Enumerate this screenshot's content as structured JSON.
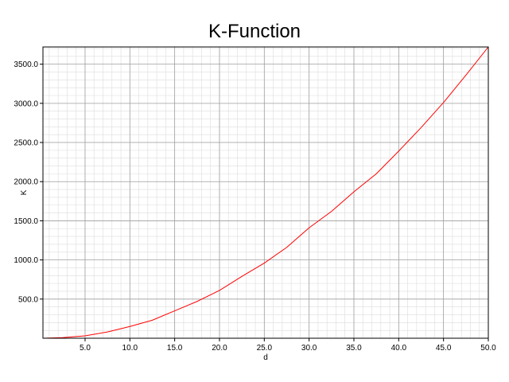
{
  "chart_data": {
    "type": "line",
    "title": "K-Function",
    "xlabel": "d",
    "ylabel": "K",
    "xlim": [
      0.3,
      50.0
    ],
    "ylim": [
      0,
      3720
    ],
    "xticks": [
      5.0,
      10.0,
      15.0,
      20.0,
      25.0,
      30.0,
      35.0,
      40.0,
      45.0,
      50.0
    ],
    "xtick_labels": [
      "5.0",
      "10.0",
      "15.0",
      "20.0",
      "25.0",
      "30.0",
      "35.0",
      "40.0",
      "45.0",
      "50.0"
    ],
    "yticks": [
      500,
      1000,
      1500,
      2000,
      2500,
      3000,
      3500
    ],
    "ytick_labels": [
      "500.0",
      "1000.0",
      "1500.0",
      "2000.0",
      "2500.0",
      "3000.0",
      "3500.0"
    ],
    "grid": true,
    "legend": "none",
    "colors": {
      "line": "#ff0000",
      "major_grid": "#a0a0a0",
      "minor_grid": "#dcdcdc"
    },
    "series": [
      {
        "x": [
          0.3,
          2.5,
          5.0,
          7.5,
          10.0,
          12.5,
          15.0,
          17.5,
          20.0,
          22.5,
          25.0,
          27.5,
          30.0,
          32.5,
          35.0,
          37.5,
          40.0,
          42.5,
          45.0,
          47.5,
          50.0
        ],
        "values": [
          0,
          8,
          30,
          80,
          150,
          230,
          350,
          470,
          610,
          790,
          960,
          1160,
          1410,
          1620,
          1870,
          2100,
          2390,
          2690,
          3010,
          3360,
          3720
        ]
      }
    ]
  }
}
